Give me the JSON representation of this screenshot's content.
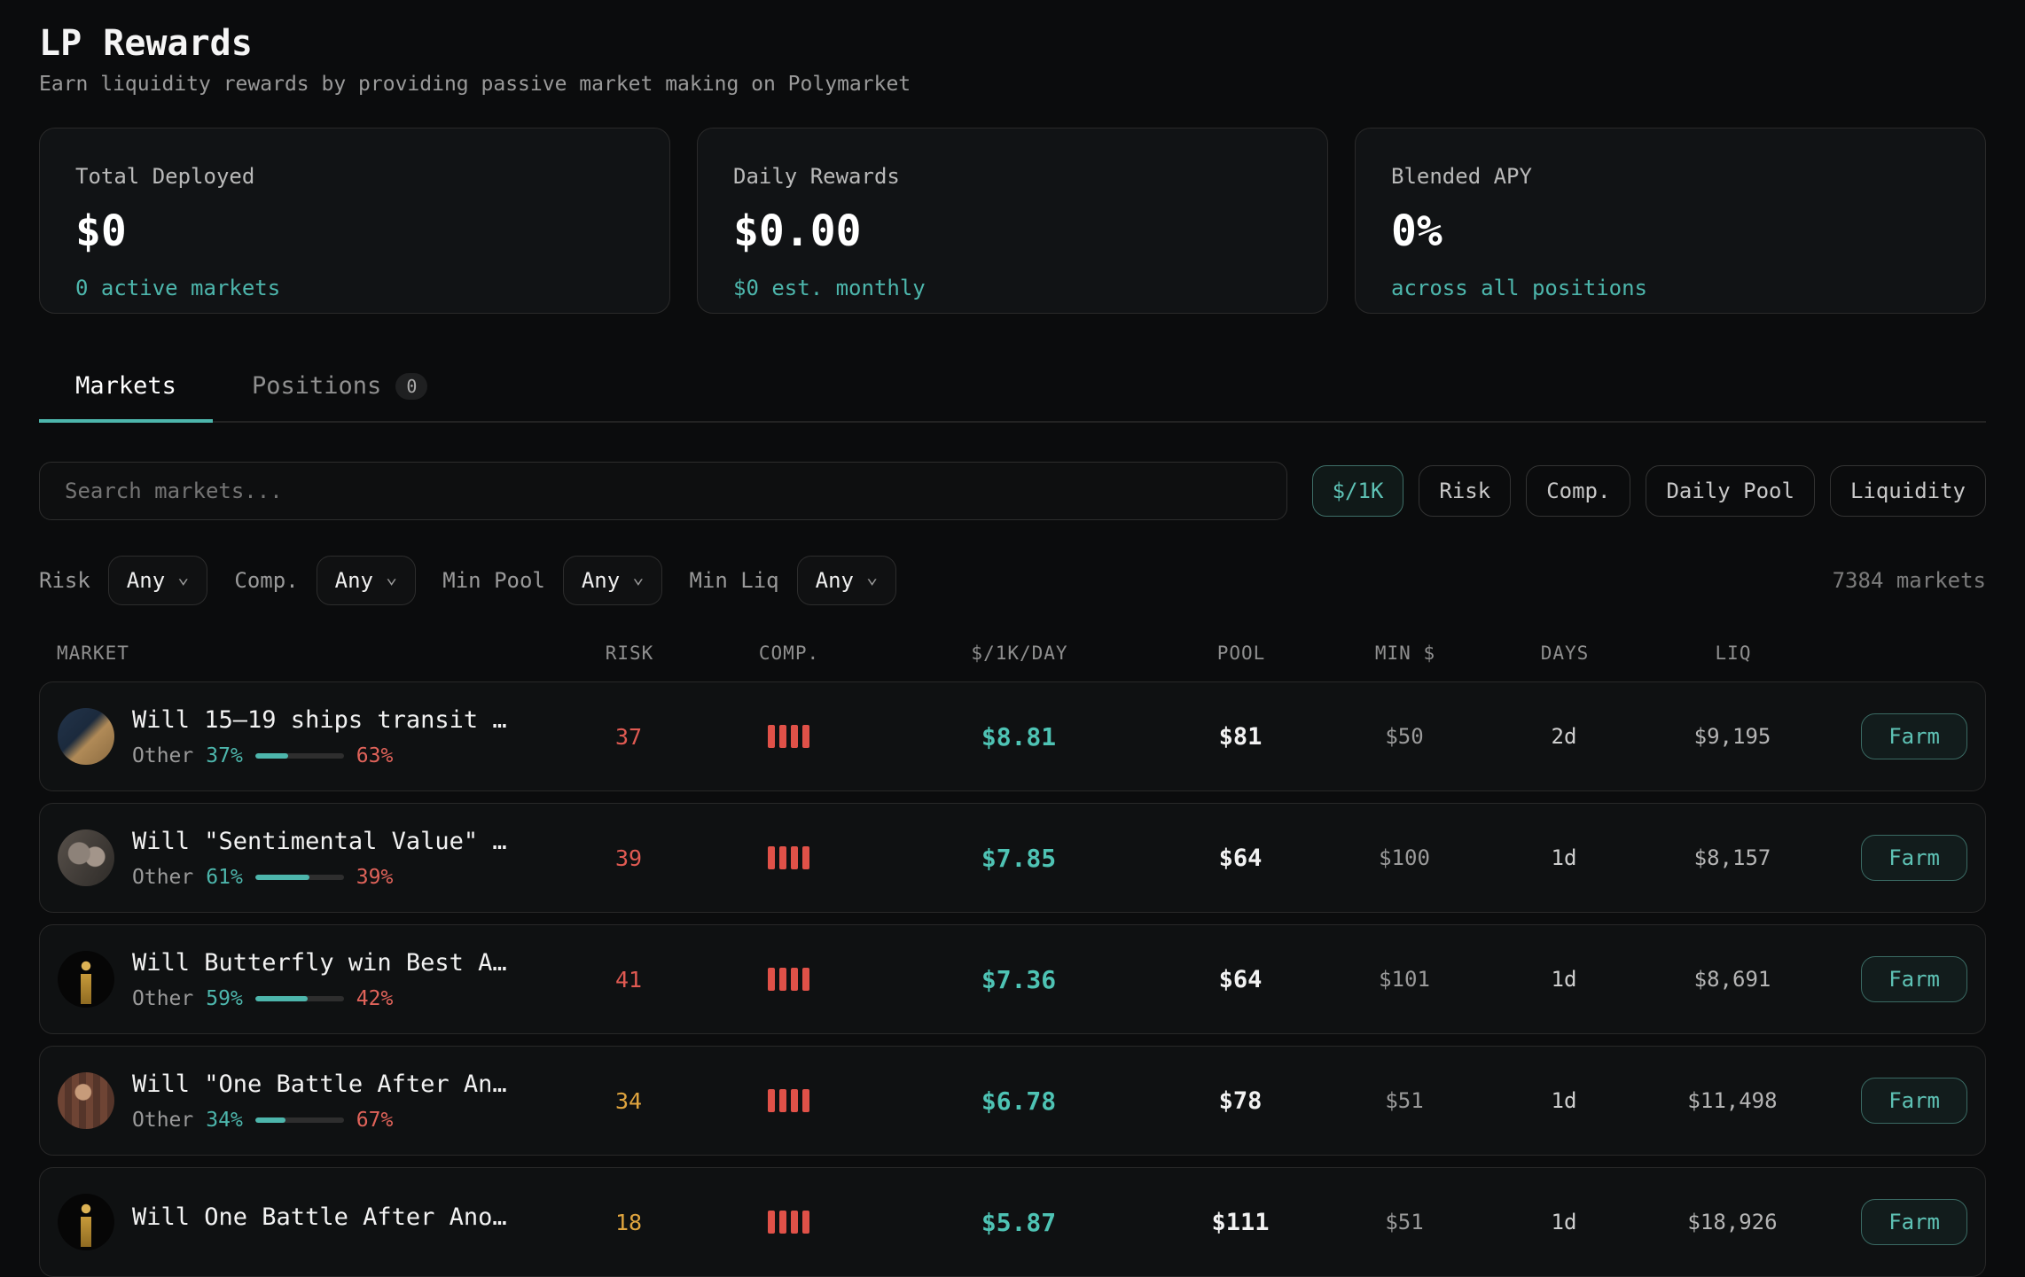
{
  "page": {
    "title": "LP Rewards",
    "subtitle": "Earn liquidity rewards by providing passive market making on Polymarket"
  },
  "colors": {
    "accent_teal": "#4db6ac",
    "risk_high_red": "#e05a52",
    "risk_medium_amber": "#dfa43e",
    "comp_bar_red": "#e05148"
  },
  "icons": {
    "chevron_down": "⌄"
  },
  "stats": [
    {
      "label": "Total Deployed",
      "value": "$0",
      "sub": "0 active markets"
    },
    {
      "label": "Daily Rewards",
      "value": "$0.00",
      "sub": "$0 est. monthly"
    },
    {
      "label": "Blended APY",
      "value": "0%",
      "sub": "across all positions"
    }
  ],
  "tabs": {
    "markets": "Markets",
    "positions": "Positions",
    "positions_count": "0"
  },
  "search": {
    "placeholder": "Search markets..."
  },
  "sort_chips": [
    {
      "label": "$/1K",
      "active": true
    },
    {
      "label": "Risk"
    },
    {
      "label": "Comp."
    },
    {
      "label": "Daily Pool"
    },
    {
      "label": "Liquidity"
    }
  ],
  "filters": [
    {
      "label": "Risk",
      "value": "Any"
    },
    {
      "label": "Comp.",
      "value": "Any"
    },
    {
      "label": "Min Pool",
      "value": "Any"
    },
    {
      "label": "Min Liq",
      "value": "Any"
    }
  ],
  "markets_count": "7384 markets",
  "table": {
    "headers": [
      "MARKET",
      "RISK",
      "COMP.",
      "$/1K/DAY",
      "POOL",
      "MIN $",
      "DAYS",
      "LIQ"
    ]
  },
  "rows": [
    {
      "avatar": "ship-satellite",
      "title": "Will 15–19 ships transit …",
      "outcome_label": "Other",
      "yes_pct": "37%",
      "yes_width": 37,
      "no_pct": "63%",
      "risk": "37",
      "risk_level": "high",
      "comp_bars": 4,
      "day_rate": "$8.81",
      "pool": "$81",
      "min": "$50",
      "days": "2d",
      "liq": "$9,195",
      "action": "Farm"
    },
    {
      "avatar": "film-couple",
      "title": "Will \"Sentimental Value\" …",
      "outcome_label": "Other",
      "yes_pct": "61%",
      "yes_width": 61,
      "no_pct": "39%",
      "risk": "39",
      "risk_level": "high",
      "comp_bars": 4,
      "day_rate": "$7.85",
      "pool": "$64",
      "min": "$100",
      "days": "1d",
      "liq": "$8,157",
      "action": "Farm"
    },
    {
      "avatar": "oscar-statue",
      "title": "Will Butterfly win Best A…",
      "outcome_label": "Other",
      "yes_pct": "59%",
      "yes_width": 59,
      "no_pct": "42%",
      "risk": "41",
      "risk_level": "high",
      "comp_bars": 4,
      "day_rate": "$7.36",
      "pool": "$64",
      "min": "$101",
      "days": "1d",
      "liq": "$8,691",
      "action": "Farm"
    },
    {
      "avatar": "plaid-man",
      "title": "Will \"One Battle After An…",
      "outcome_label": "Other",
      "yes_pct": "34%",
      "yes_width": 34,
      "no_pct": "67%",
      "risk": "34",
      "risk_level": "medium",
      "comp_bars": 4,
      "day_rate": "$6.78",
      "pool": "$78",
      "min": "$51",
      "days": "1d",
      "liq": "$11,498",
      "action": "Farm"
    },
    {
      "avatar": "oscar-statue",
      "title": "Will One Battle After Ano…",
      "risk": "18",
      "risk_level": "medium",
      "comp_bars": 4,
      "day_rate": "$5.87",
      "pool": "$111",
      "min": "$51",
      "days": "1d",
      "liq": "$18,926",
      "action": "Farm"
    }
  ]
}
